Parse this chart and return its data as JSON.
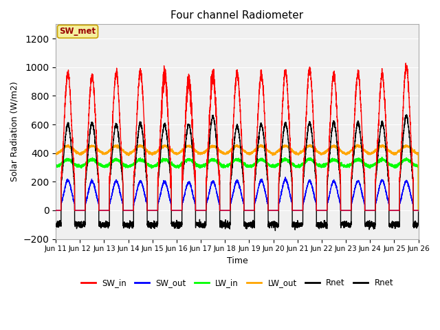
{
  "title": "Four channel Radiometer",
  "xlabel": "Time",
  "ylabel": "Solar Radiation (W/m2)",
  "ylim": [
    -200,
    1300
  ],
  "yticks": [
    -200,
    0,
    200,
    400,
    600,
    800,
    1000,
    1200
  ],
  "xlim": [
    0,
    15
  ],
  "xtick_labels": [
    "Jun 11",
    "Jun 12",
    "Jun 13",
    "Jun 14",
    "Jun 15",
    "Jun 16",
    "Jun 17",
    "Jun 18",
    "Jun 19",
    "Jun 20",
    "Jun 21",
    "Jun 22",
    "Jun 23",
    "Jun 24",
    "Jun 25",
    "Jun 26"
  ],
  "plot_bg": "#f0f0f0",
  "sw_met_label": "SW_met",
  "sw_met_box_color": "#f5f0a0",
  "sw_met_text_color": "#990000",
  "n_days": 15,
  "points_per_day": 300,
  "sw_in_peaks": [
    960,
    940,
    960,
    970,
    960,
    900,
    940,
    960,
    950,
    970,
    990,
    950,
    960,
    950,
    1010
  ],
  "sw_out_peaks": [
    210,
    205,
    205,
    205,
    200,
    195,
    200,
    205,
    210,
    215,
    205,
    205,
    205,
    210,
    205
  ],
  "lw_in_base": 305,
  "lw_out_base": 390,
  "rnet_peaks": [
    600,
    610,
    600,
    610,
    600,
    600,
    655,
    590,
    600,
    605,
    610,
    615,
    615,
    615,
    660
  ],
  "rnet_night": -100,
  "grid_color": "#cccccc"
}
